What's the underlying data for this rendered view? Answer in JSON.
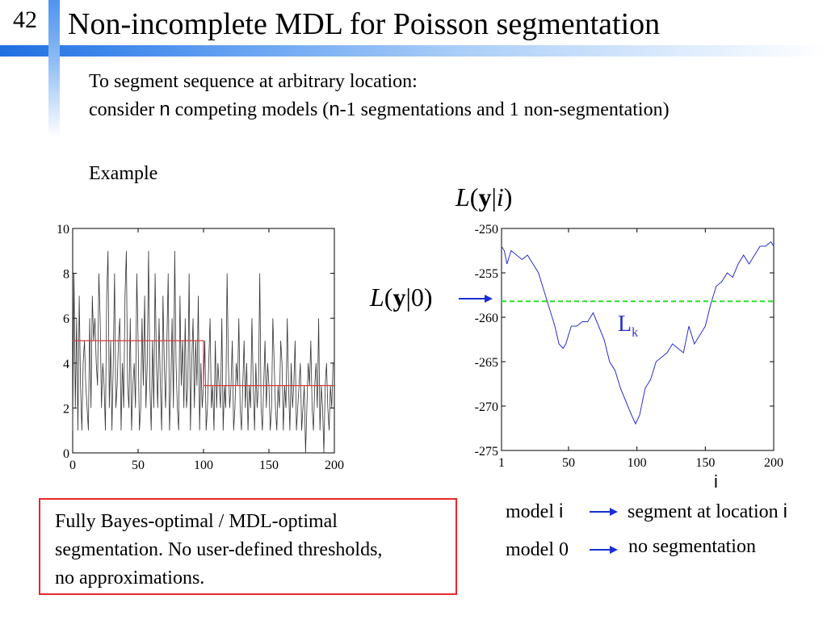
{
  "slide": {
    "number": "42",
    "title": "Non-incomplete MDL for Poisson segmentation"
  },
  "intro": {
    "line1": "To segment sequence at arbitrary location:",
    "line2_pre": "consider ",
    "n1": "n",
    "line2_mid": " competing models (",
    "n2": "n",
    "line2_post": "-1 segmentations and 1 non-segmentation)"
  },
  "example_label": "Example",
  "colors": {
    "header_blue": "#1f6fe0",
    "signal": "#333333",
    "segment_fit": "#d83a3a",
    "likelihood_curve": "#2b2fd0",
    "null_line": "#2adf2a",
    "arrow": "#1a2fd0",
    "note_border": "#e8282a"
  },
  "chart_data": [
    {
      "type": "line",
      "title": "",
      "xlabel": "",
      "ylabel": "",
      "xlim": [
        0,
        200
      ],
      "ylim": [
        0,
        10
      ],
      "xticks": [
        "0",
        "50",
        "100",
        "150",
        "200"
      ],
      "yticks": [
        "0",
        "2",
        "4",
        "6",
        "8",
        "10"
      ],
      "series": [
        {
          "values": [
            1,
            8,
            2,
            6,
            1,
            7,
            3,
            1,
            4,
            5,
            3,
            2,
            1,
            6,
            2,
            7,
            5,
            6,
            4,
            3,
            8,
            6,
            2,
            4,
            3,
            1,
            7,
            9,
            2,
            5,
            1,
            4,
            8,
            2,
            3,
            5,
            6,
            1,
            4,
            2,
            7,
            9,
            3,
            2,
            6,
            1,
            3,
            4,
            2,
            8,
            5,
            1,
            2,
            6,
            3,
            7,
            2,
            4,
            9,
            3,
            1,
            5,
            2,
            8,
            4,
            2,
            6,
            3,
            1,
            7,
            4,
            2,
            5,
            8,
            1,
            3,
            6,
            2,
            9,
            4,
            2,
            1,
            7,
            3,
            5,
            2,
            6,
            2,
            3,
            8,
            1,
            4,
            6,
            2,
            5,
            3,
            7,
            1,
            4,
            2,
            3,
            5,
            1,
            2,
            4,
            6,
            2,
            3,
            1,
            5,
            2,
            4,
            3,
            2,
            6,
            1,
            3,
            2,
            8,
            4,
            2,
            3,
            5,
            1,
            2,
            4,
            3,
            6,
            2,
            1,
            3,
            5,
            2,
            4,
            1,
            3,
            2,
            6,
            3,
            1,
            4,
            2,
            3,
            8,
            2,
            1,
            3,
            5,
            2,
            4,
            3,
            1,
            2,
            6,
            4,
            2,
            1,
            3,
            2,
            5,
            4,
            1,
            3,
            2,
            6,
            3,
            1,
            4,
            2,
            3,
            5,
            1,
            2,
            3,
            4,
            1,
            2,
            3,
            0,
            2,
            4,
            3,
            5,
            2,
            1,
            3,
            4,
            2,
            6,
            1,
            3,
            2,
            0,
            3,
            4,
            2,
            1,
            3,
            2,
            4
          ]
        },
        {
          "x": [
            0,
            100,
            100,
            200
          ],
          "values": [
            5,
            5,
            3,
            3
          ]
        }
      ]
    },
    {
      "type": "line",
      "title_latex": "L(y|i)",
      "xlim": [
        1,
        200
      ],
      "ylim": [
        -275,
        -250
      ],
      "xticks": [
        "1",
        "50",
        "100",
        "150",
        "200"
      ],
      "yticks": [
        "-250",
        "-255",
        "-260",
        "-265",
        "-270",
        "-275"
      ],
      "xlabel": "i",
      "series": [
        {
          "x": [
            1,
            3,
            5,
            8,
            12,
            16,
            20,
            24,
            28,
            32,
            36,
            40,
            43,
            46,
            48,
            52,
            56,
            60,
            64,
            68,
            72,
            76,
            80,
            84,
            88,
            92,
            96,
            99,
            102,
            106,
            110,
            114,
            118,
            122,
            126,
            130,
            134,
            138,
            142,
            146,
            150,
            154,
            158,
            162,
            166,
            170,
            174,
            178,
            182,
            186,
            190,
            194,
            198,
            200
          ],
          "values": [
            -252,
            -252.5,
            -254,
            -252.5,
            -253,
            -253.5,
            -253,
            -254,
            -255,
            -257,
            -259,
            -261,
            -263,
            -263.5,
            -263,
            -261,
            -261,
            -260.5,
            -260.5,
            -259.5,
            -261,
            -262.5,
            -265,
            -266,
            -268,
            -269.5,
            -271,
            -272,
            -271,
            -268,
            -267,
            -265,
            -264.5,
            -264,
            -263,
            -263.5,
            -264,
            -261,
            -263,
            -262,
            -261,
            -258.5,
            -256.5,
            -256,
            -255,
            -255.5,
            -254,
            -253,
            -254,
            -253,
            -252,
            -252,
            -251.5,
            -252
          ]
        },
        {
          "x": [
            1,
            200
          ],
          "values": [
            -258.2,
            -258.2
          ]
        }
      ],
      "annotation": {
        "base": "L",
        "sub": "k"
      },
      "null_label_latex": "L(y|0)"
    }
  ],
  "note": {
    "line1": "Fully Bayes-optimal / MDL-optimal",
    "line2": "segmentation. No user-defined thresholds,",
    "line3": "no approximations."
  },
  "legend": {
    "model_i_prefix": "model ",
    "model_i_var": "i",
    "model_i_result_prefix": "segment at location ",
    "model_i_result_var": "i",
    "model_0": "model 0",
    "model_0_result": "no segmentation"
  }
}
